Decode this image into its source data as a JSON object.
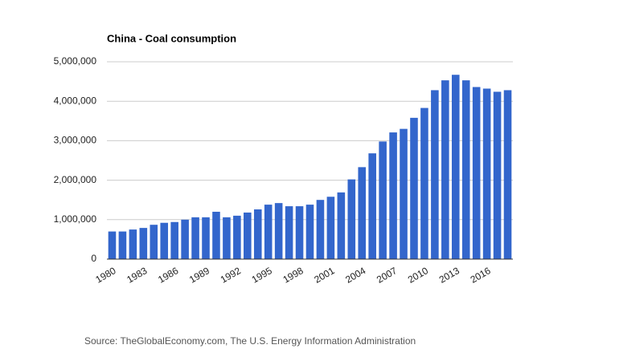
{
  "chart_data": {
    "type": "bar",
    "title": "China - Coal consumption",
    "categories": [
      "1980",
      null,
      null,
      "1983",
      null,
      null,
      "1986",
      null,
      null,
      "1989",
      null,
      null,
      "1992",
      null,
      null,
      "1995",
      null,
      null,
      "1998",
      null,
      null,
      "2001",
      null,
      null,
      "2004",
      null,
      null,
      "2007",
      null,
      null,
      "2010",
      null,
      null,
      "2013",
      null,
      null,
      "2016",
      null,
      null
    ],
    "values": [
      700000,
      700000,
      750000,
      790000,
      870000,
      920000,
      940000,
      1000000,
      1060000,
      1060000,
      1200000,
      1060000,
      1100000,
      1180000,
      1260000,
      1380000,
      1420000,
      1340000,
      1340000,
      1380000,
      1500000,
      1580000,
      1690000,
      2020000,
      2330000,
      2680000,
      2980000,
      3210000,
      3300000,
      3580000,
      3830000,
      4280000,
      4530000,
      4670000,
      4530000,
      4360000,
      4320000,
      4240000,
      4280000
    ],
    "color": "#3366cc",
    "ylim": [
      0,
      5000000
    ],
    "yticks": [
      0,
      {
        "value": 1000000,
        "label": "1,000,000"
      },
      {
        "value": 2000000,
        "label": "2,000,000"
      },
      {
        "value": 3000000,
        "label": "3,000,000"
      },
      {
        "value": 4000000,
        "label": "4,000,000"
      },
      {
        "value": 5000000,
        "label": "5,000,000"
      }
    ],
    "grid": true,
    "source": "Source: TheGlobalEconomy.com, The U.S. Energy Information Administration"
  }
}
